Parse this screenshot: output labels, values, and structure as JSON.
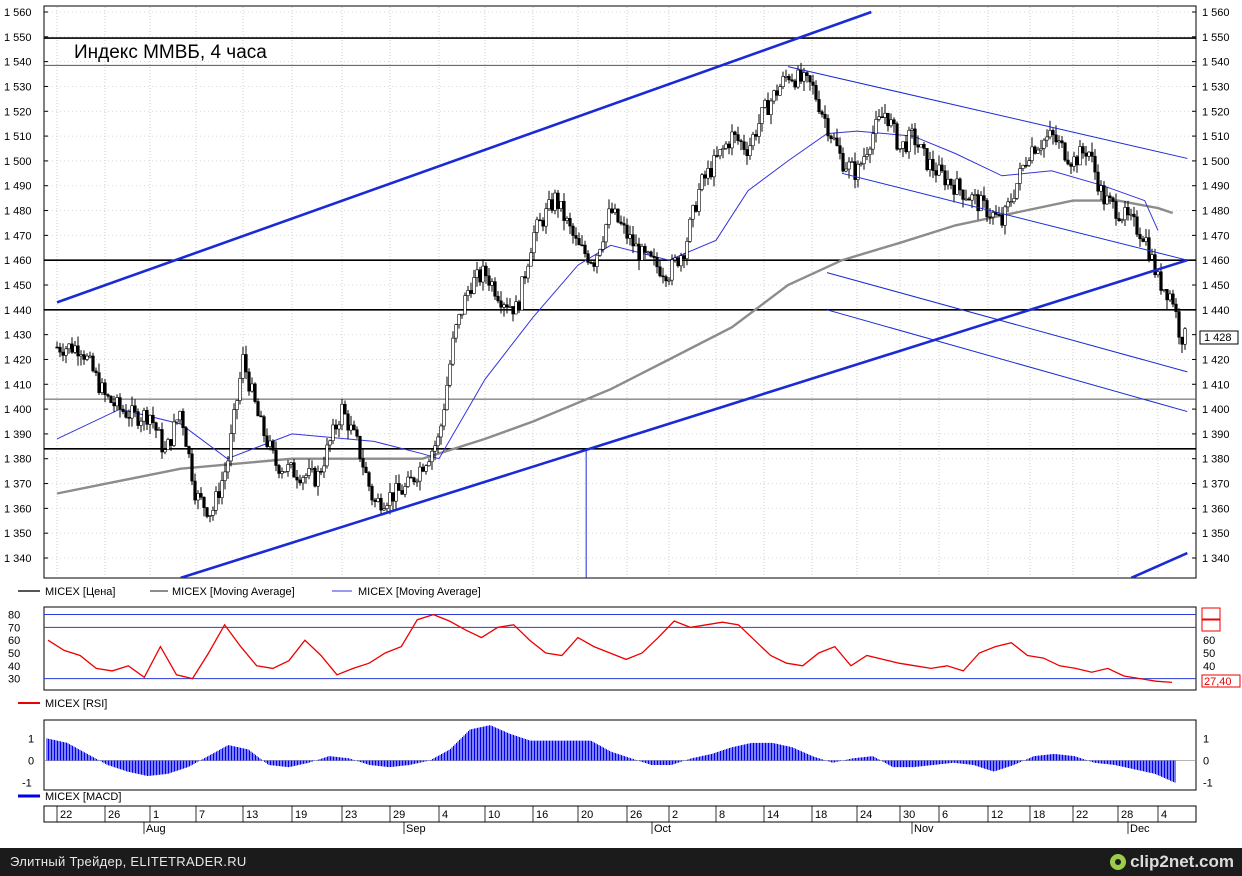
{
  "chart_data": [
    {
      "type": "candlestick",
      "title": "Индекс ММВБ, 4 часа",
      "ylim": [
        1332,
        1563
      ],
      "y_ticks": [
        1560,
        1550,
        1540,
        1530,
        1520,
        1510,
        1500,
        1490,
        1480,
        1470,
        1460,
        1450,
        1440,
        1430,
        1420,
        1410,
        1400,
        1390,
        1380,
        1370,
        1360,
        1350,
        1340
      ],
      "y_tick_labels": [
        "1 560",
        "1 550",
        "1 540",
        "1 530",
        "1 520",
        "1 510",
        "1 500",
        "1 490",
        "1 480",
        "1 470",
        "1 460",
        "1 450",
        "1 440",
        "1 430",
        "1 420",
        "1 410",
        "1 400",
        "1 390",
        "1 380",
        "1 370",
        "1 360",
        "1 350",
        "1 340"
      ],
      "last_price_label": "1 428",
      "horizontal_levels": [
        1549.5,
        1538.5,
        1460,
        1440,
        1404,
        1384
      ],
      "legend": [
        "MICEX [Цена]",
        "MICEX [Moving Average]",
        "MICEX [Moving Average]"
      ],
      "price_path": [
        [
          "Jul 22",
          1425
        ],
        [
          "Jul 24",
          1425
        ],
        [
          "Jul 26",
          1405
        ],
        [
          "Jul 28",
          1400
        ],
        [
          "Jul 30",
          1397
        ],
        [
          "Aug 1",
          1398
        ],
        [
          "Aug 3",
          1382
        ],
        [
          "Aug 5",
          1400
        ],
        [
          "Aug 7",
          1365
        ],
        [
          "Aug 9",
          1358
        ],
        [
          "Aug 11",
          1378
        ],
        [
          "Aug 13",
          1420
        ],
        [
          "Aug 15",
          1395
        ],
        [
          "Aug 17",
          1378
        ],
        [
          "Aug 19",
          1375
        ],
        [
          "Aug 21",
          1372
        ],
        [
          "Aug 23",
          1400
        ],
        [
          "Aug 25",
          1385
        ],
        [
          "Aug 27",
          1362
        ],
        [
          "Aug 29",
          1365
        ],
        [
          "Aug 31",
          1368
        ],
        [
          "Sep 2",
          1378
        ],
        [
          "Sep 4",
          1388
        ],
        [
          "Sep 6",
          1430
        ],
        [
          "Sep 8",
          1450
        ],
        [
          "Sep 10",
          1455
        ],
        [
          "Sep 12",
          1445
        ],
        [
          "Sep 14",
          1440
        ],
        [
          "Sep 16",
          1470
        ],
        [
          "Sep 18",
          1485
        ],
        [
          "Sep 20",
          1465
        ],
        [
          "Sep 22",
          1460
        ],
        [
          "Sep 24",
          1480
        ],
        [
          "Sep 26",
          1470
        ],
        [
          "Sep 28",
          1462
        ],
        [
          "Sep 30",
          1458
        ],
        [
          "Oct 2",
          1455
        ],
        [
          "Oct 4",
          1465
        ],
        [
          "Oct 6",
          1490
        ],
        [
          "Oct 8",
          1500
        ],
        [
          "Oct 10",
          1510
        ],
        [
          "Oct 12",
          1505
        ],
        [
          "Oct 14",
          1520
        ],
        [
          "Oct 16",
          1535
        ],
        [
          "Oct 18",
          1530
        ],
        [
          "Oct 20",
          1515
        ],
        [
          "Oct 22",
          1500
        ],
        [
          "Oct 24",
          1495
        ],
        [
          "Oct 26",
          1510
        ],
        [
          "Oct 28",
          1520
        ],
        [
          "Oct 30",
          1505
        ],
        [
          "Nov 1",
          1510
        ],
        [
          "Nov 3",
          1500
        ],
        [
          "Nov 5",
          1495
        ],
        [
          "Nov 7",
          1490
        ],
        [
          "Nov 9",
          1485
        ],
        [
          "Nov 11",
          1480
        ],
        [
          "Nov 13",
          1475
        ],
        [
          "Nov 15",
          1490
        ],
        [
          "Nov 17",
          1505
        ],
        [
          "Nov 19",
          1510
        ],
        [
          "Nov 21",
          1500
        ],
        [
          "Nov 23",
          1505
        ],
        [
          "Nov 25",
          1485
        ],
        [
          "Nov 27",
          1480
        ],
        [
          "Nov 29",
          1475
        ],
        [
          "Dec 1",
          1470
        ],
        [
          "Dec 3",
          1452
        ],
        [
          "Dec 5",
          1445
        ],
        [
          "Dec 6",
          1430
        ],
        [
          "Dec 7",
          1428
        ]
      ],
      "moving_average_long": [
        [
          "Jul 22",
          1366
        ],
        [
          "Aug 5",
          1376
        ],
        [
          "Aug 19",
          1380
        ],
        [
          "Sep 2",
          1380
        ],
        [
          "Sep 10",
          1388
        ],
        [
          "Sep 16",
          1395
        ],
        [
          "Sep 24",
          1408
        ],
        [
          "Oct 2",
          1420
        ],
        [
          "Oct 10",
          1433
        ],
        [
          "Oct 16",
          1450
        ],
        [
          "Oct 22",
          1460
        ],
        [
          "Oct 30",
          1467
        ],
        [
          "Nov 7",
          1474
        ],
        [
          "Nov 13",
          1478
        ],
        [
          "Nov 21",
          1484
        ],
        [
          "Nov 27",
          1484
        ],
        [
          "Dec 3",
          1481
        ],
        [
          "Dec 5",
          1479
        ]
      ],
      "moving_average_short": [
        [
          "Jul 22",
          1388
        ],
        [
          "Jul 28",
          1400
        ],
        [
          "Aug 5",
          1394
        ],
        [
          "Aug 11",
          1380
        ],
        [
          "Aug 19",
          1390
        ],
        [
          "Aug 27",
          1387
        ],
        [
          "Sep 2",
          1382
        ],
        [
          "Sep 4",
          1380
        ],
        [
          "Sep 10",
          1412
        ],
        [
          "Sep 16",
          1437
        ],
        [
          "Sep 20",
          1458
        ],
        [
          "Sep 24",
          1466
        ],
        [
          "Oct 2",
          1460
        ],
        [
          "Oct 8",
          1468
        ],
        [
          "Oct 12",
          1488
        ],
        [
          "Oct 16",
          1500
        ],
        [
          "Oct 20",
          1511
        ],
        [
          "Oct 24",
          1512
        ],
        [
          "Nov 1",
          1510
        ],
        [
          "Nov 7",
          1503
        ],
        [
          "Nov 13",
          1494
        ],
        [
          "Nov 19",
          1496
        ],
        [
          "Nov 25",
          1490
        ],
        [
          "Dec 1",
          1484
        ],
        [
          "Dec 3",
          1472
        ]
      ],
      "trend_lines": [
        [
          [
            "Jul 22",
            1443
          ],
          [
            "Oct 26",
            1560
          ]
        ],
        [
          [
            "Aug 5",
            1332
          ],
          [
            "Dec 7",
            1460
          ]
        ],
        [
          [
            "Nov 29",
            1332
          ],
          [
            "Dec 7",
            1342
          ]
        ],
        [
          [
            "Oct 16",
            1538
          ],
          [
            "Dec 7",
            1501
          ]
        ],
        [
          [
            "Oct 22",
            1495
          ],
          [
            "Dec 7",
            1460
          ]
        ],
        [
          [
            "Oct 20",
            1455
          ],
          [
            "Dec 7",
            1415
          ]
        ],
        [
          [
            "Oct 20",
            1440
          ],
          [
            "Dec 7",
            1399
          ]
        ],
        [
          [
            "Sep 21",
            1384
          ],
          [
            "Sep 21",
            1332
          ]
        ]
      ]
    },
    {
      "type": "line",
      "legend": "MICEX [RSI]",
      "ylim": [
        25,
        82
      ],
      "y_ticks": [
        80,
        70,
        60,
        50,
        40,
        30
      ],
      "levels": [
        80,
        70,
        30
      ],
      "last_value_label": "27,40",
      "series": [
        {
          "name": "MICEX [RSI]",
          "values": [
            60,
            52,
            48,
            38,
            36,
            40,
            31,
            55,
            33,
            30,
            50,
            72,
            55,
            40,
            38,
            44,
            60,
            48,
            33,
            38,
            42,
            50,
            55,
            76,
            80,
            75,
            68,
            62,
            70,
            72,
            60,
            50,
            48,
            62,
            55,
            50,
            45,
            50,
            62,
            75,
            70,
            72,
            74,
            72,
            60,
            48,
            42,
            40,
            50,
            55,
            40,
            48,
            45,
            42,
            40,
            38,
            40,
            36,
            50,
            55,
            58,
            48,
            46,
            40,
            38,
            35,
            38,
            32,
            30,
            28,
            27
          ]
        }
      ]
    },
    {
      "type": "bar",
      "legend": "MICEX [MACD]",
      "ylim": [
        -1.15,
        1.65
      ],
      "y_ticks": [
        1,
        0,
        -1
      ],
      "series": [
        {
          "name": "MICEX [MACD]",
          "values": [
            1.0,
            0.8,
            0.3,
            -0.2,
            -0.5,
            -0.7,
            -0.6,
            -0.3,
            0.2,
            0.7,
            0.5,
            -0.2,
            -0.3,
            -0.1,
            0.2,
            0.1,
            -0.2,
            -0.3,
            -0.2,
            0.0,
            0.5,
            1.4,
            1.6,
            1.2,
            0.9,
            0.9,
            0.9,
            0.9,
            0.4,
            0.1,
            -0.2,
            -0.2,
            0.1,
            0.3,
            0.6,
            0.8,
            0.8,
            0.6,
            0.2,
            -0.1,
            0.1,
            0.2,
            -0.3,
            -0.3,
            -0.2,
            -0.1,
            -0.2,
            -0.5,
            -0.2,
            0.2,
            0.3,
            0.2,
            -0.1,
            -0.2,
            -0.4,
            -0.6,
            -1.0
          ]
        }
      ]
    }
  ],
  "x_axis": {
    "day_labels": [
      "22",
      "26",
      "1",
      "7",
      "13",
      "19",
      "23",
      "29",
      "4",
      "10",
      "16",
      "20",
      "26",
      "2",
      "8",
      "14",
      "18",
      "24",
      "30",
      "6",
      "12",
      "18",
      "22",
      "28",
      "4"
    ],
    "month_labels": [
      "Aug",
      "Sep",
      "Oct",
      "Nov",
      "Dec"
    ]
  },
  "footer": {
    "caption": "Элитный Трейдер, ELITETRADER.RU",
    "brand": "clip2net.com"
  },
  "colors": {
    "price": "#000000",
    "ma_long": "#8c8c8c",
    "ma_short": "#3333dd",
    "trend": "#1a2bd6",
    "rsi": "#ee0000",
    "macd": "#0000ee"
  }
}
